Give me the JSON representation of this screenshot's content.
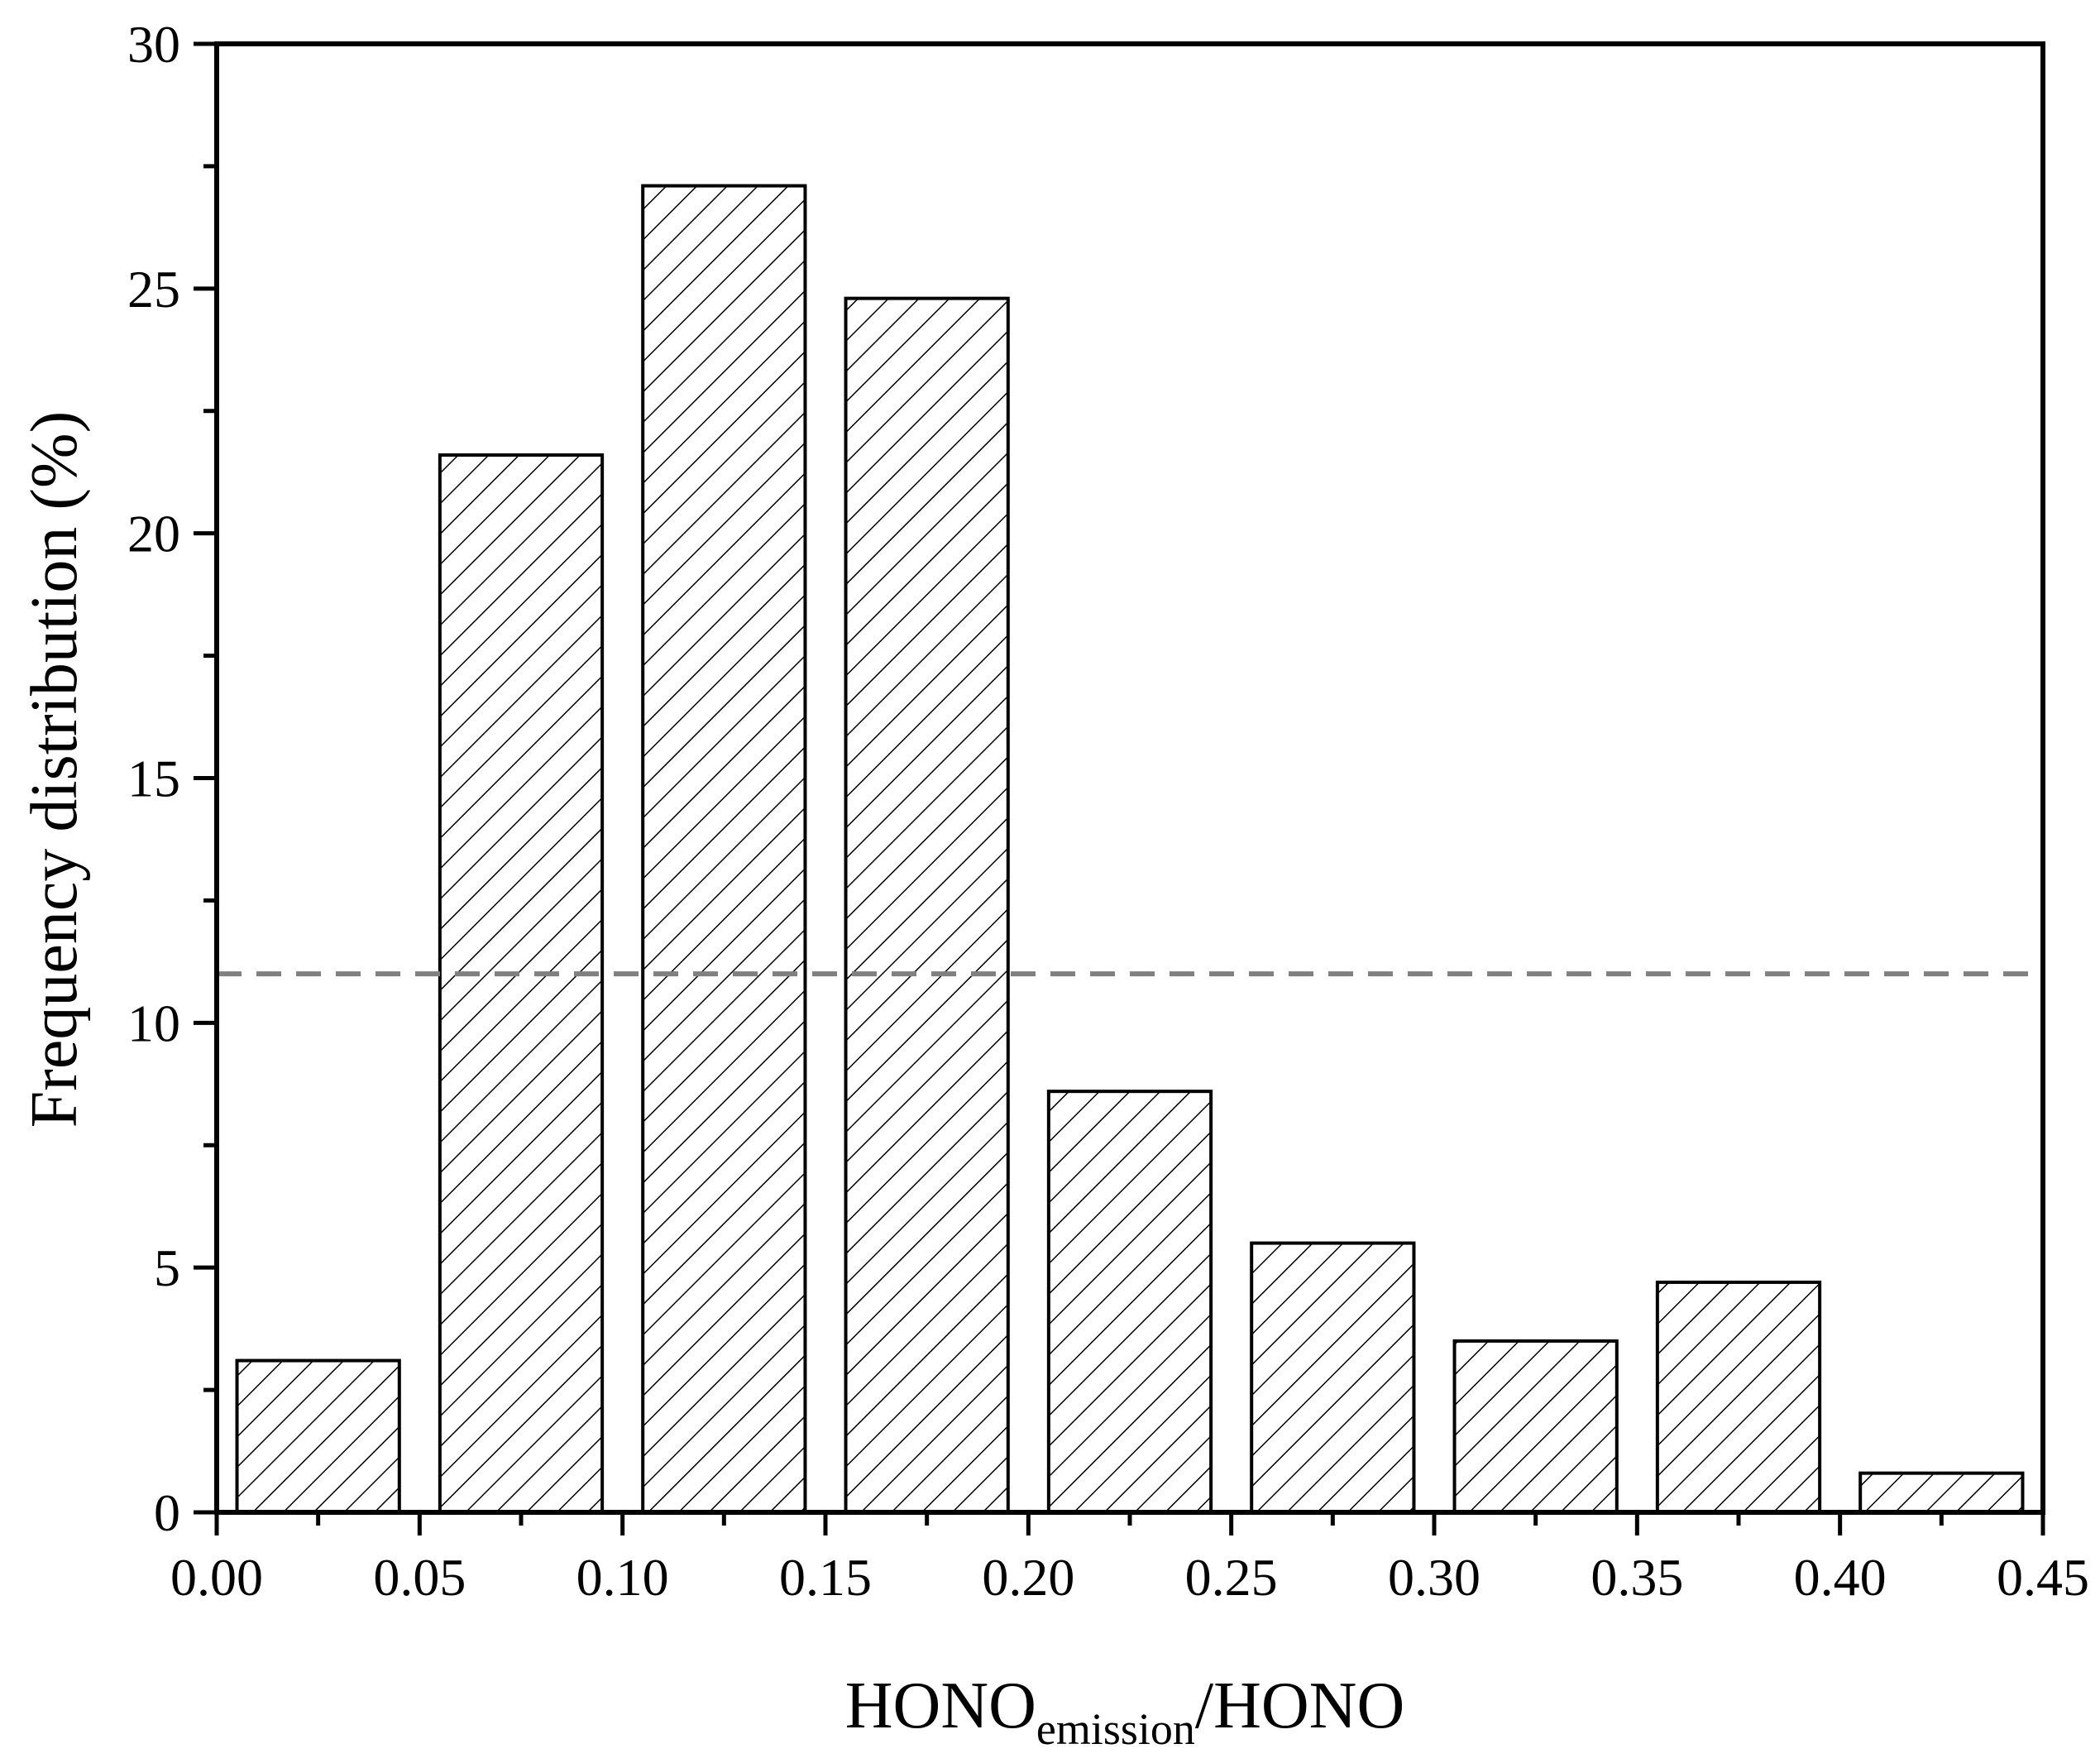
{
  "chart_data": {
    "type": "bar",
    "xlabel": {
      "main": "HONO",
      "subscript": "emission",
      "suffix": "/HONO"
    },
    "ylabel": "Frequency distribution (%)",
    "xlim": [
      0.0,
      0.45
    ],
    "ylim": [
      0,
      30
    ],
    "x_ticks": [
      "0.00",
      "0.05",
      "0.10",
      "0.15",
      "0.20",
      "0.25",
      "0.30",
      "0.35",
      "0.40",
      "0.45"
    ],
    "y_ticks": [
      "0",
      "5",
      "10",
      "15",
      "20",
      "25",
      "30"
    ],
    "bins": [
      {
        "x0": 0.005,
        "x1": 0.045,
        "value": 3.1
      },
      {
        "x0": 0.055,
        "x1": 0.095,
        "value": 21.6
      },
      {
        "x0": 0.105,
        "x1": 0.145,
        "value": 27.1
      },
      {
        "x0": 0.155,
        "x1": 0.195,
        "value": 24.8
      },
      {
        "x0": 0.205,
        "x1": 0.245,
        "value": 8.6
      },
      {
        "x0": 0.255,
        "x1": 0.295,
        "value": 5.5
      },
      {
        "x0": 0.305,
        "x1": 0.345,
        "value": 3.5
      },
      {
        "x0": 0.355,
        "x1": 0.395,
        "value": 4.7
      },
      {
        "x0": 0.405,
        "x1": 0.445,
        "value": 0.8
      }
    ],
    "reference_line": {
      "y": 11.0,
      "style": "dashed",
      "color": "#808080"
    },
    "bar_fill": "hatched",
    "bar_edge_color": "#000000",
    "grid": false
  }
}
